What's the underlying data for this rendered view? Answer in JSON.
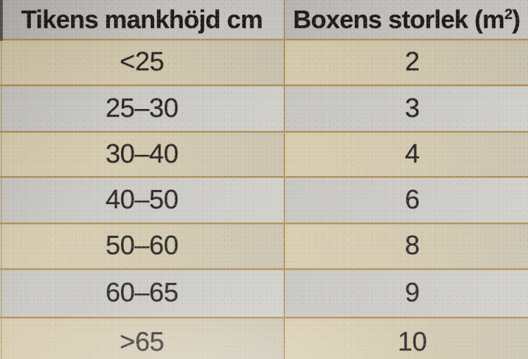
{
  "colors": {
    "grid_line": "#ac8242",
    "row_beige": "#d3c8ae",
    "row_gray": "#cac9c5",
    "header_bg": "#c3c2be",
    "text": "#2b2627"
  },
  "table": {
    "columns": [
      {
        "label": "Tikens mankhöjd cm"
      },
      {
        "label_pre": "Boxens storlek (m",
        "label_sup": "2",
        "label_post": ")"
      }
    ],
    "rows": [
      {
        "mankhojd": "<25",
        "storlek": "2"
      },
      {
        "mankhojd": "25–30",
        "storlek": "3"
      },
      {
        "mankhojd": "30–40",
        "storlek": "4"
      },
      {
        "mankhojd": "40–50",
        "storlek": "6"
      },
      {
        "mankhojd": "50–60",
        "storlek": "8"
      },
      {
        "mankhojd": "60–65",
        "storlek": "9"
      },
      {
        "mankhojd": ">65",
        "storlek": "10"
      }
    ]
  }
}
